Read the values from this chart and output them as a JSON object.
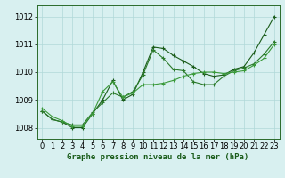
{
  "title": "Graphe pression niveau de la mer (hPa)",
  "background_color": "#d8f0f0",
  "grid_color": "#b0d8d8",
  "line_color_dark": "#1a5c1a",
  "line_color_mid": "#2a7a2a",
  "line_color_light": "#3a9a3a",
  "x_ticks": [
    0,
    1,
    2,
    3,
    4,
    5,
    6,
    7,
    8,
    9,
    10,
    11,
    12,
    13,
    14,
    15,
    16,
    17,
    18,
    19,
    20,
    21,
    22,
    23
  ],
  "y_ticks": [
    1008,
    1009,
    1010,
    1011,
    1012
  ],
  "xlim": [
    -0.5,
    23.5
  ],
  "ylim": [
    1007.6,
    1012.4
  ],
  "series": [
    [
      1008.6,
      1008.3,
      1008.2,
      1008.0,
      1008.0,
      1008.5,
      1009.0,
      1009.7,
      1009.0,
      1009.2,
      1010.0,
      1010.9,
      1010.85,
      1010.6,
      1010.4,
      1010.2,
      1009.95,
      1009.85,
      1009.9,
      1010.1,
      1010.2,
      1010.7,
      1011.35,
      1012.0
    ],
    [
      1008.6,
      1008.3,
      1008.2,
      1008.1,
      1008.1,
      1008.55,
      1008.9,
      1009.25,
      1009.1,
      1009.3,
      1009.9,
      1010.8,
      1010.5,
      1010.1,
      1010.05,
      1009.65,
      1009.55,
      1009.55,
      1009.85,
      1010.05,
      1010.15,
      1010.3,
      1010.65,
      1011.1
    ],
    [
      1008.7,
      1008.4,
      1008.25,
      1008.05,
      1008.05,
      1008.5,
      1009.3,
      1009.65,
      1009.1,
      1009.25,
      1009.55,
      1009.55,
      1009.6,
      1009.7,
      1009.85,
      1009.95,
      1010.0,
      1010.0,
      1009.95,
      1010.0,
      1010.05,
      1010.25,
      1010.5,
      1011.0
    ]
  ],
  "tick_fontsize": 6,
  "xlabel_fontsize": 6.5,
  "spine_color": "#2a6a2a"
}
